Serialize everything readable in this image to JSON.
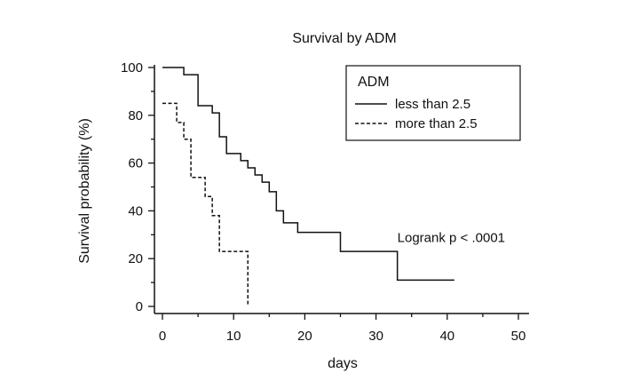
{
  "chart_data": {
    "type": "line",
    "title": "Survival by ADM",
    "xlabel": "days",
    "ylabel": "Survival probability (%)",
    "xlim": [
      0,
      50
    ],
    "ylim": [
      0,
      100
    ],
    "x_ticks": [
      0,
      10,
      20,
      30,
      40,
      50
    ],
    "y_ticks": [
      0,
      20,
      40,
      60,
      80,
      100
    ],
    "grid": false,
    "step": true,
    "legend": {
      "title": "ADM",
      "position": "top-right"
    },
    "series": [
      {
        "name": "less than 2.5",
        "style": "solid",
        "x": [
          0,
          3,
          5,
          7,
          8,
          9,
          11,
          12,
          13,
          14,
          15,
          16,
          17,
          19,
          25,
          33,
          41
        ],
        "y": [
          100,
          97,
          84,
          81,
          71,
          64,
          61,
          58,
          55,
          52,
          48,
          40,
          35,
          31,
          23,
          11,
          11
        ]
      },
      {
        "name": "more than 2.5",
        "style": "dashed",
        "x": [
          0,
          2,
          3,
          4,
          4,
          6,
          7,
          8,
          12,
          12
        ],
        "y": [
          85,
          77,
          70,
          62,
          54,
          46,
          38,
          23,
          23,
          0
        ]
      }
    ],
    "annotations": [
      {
        "text": "Logrank p < .0001",
        "x": 33,
        "y": 27
      }
    ]
  }
}
